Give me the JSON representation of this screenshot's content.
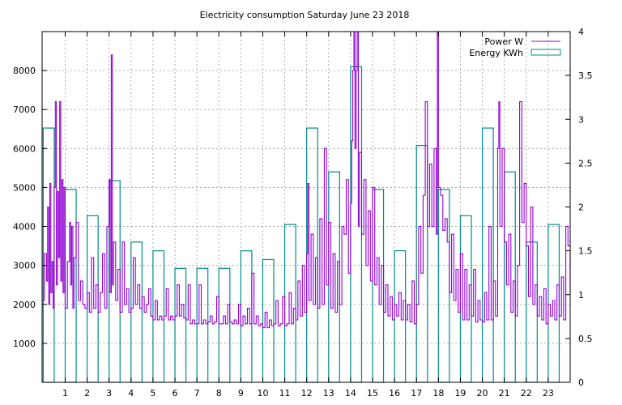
{
  "chart_data": {
    "type": "line",
    "title": "Electricity consumption Saturday June 23 2018",
    "xlabel": "",
    "ylabel": "",
    "y2label": "",
    "x_ticks": [
      "1",
      "2",
      "3",
      "4",
      "5",
      "6",
      "7",
      "8",
      "9",
      "10",
      "11",
      "12",
      "13",
      "14",
      "15",
      "16",
      "17",
      "18",
      "19",
      "20",
      "21",
      "22",
      "23"
    ],
    "x_range": [
      -0.05,
      24.0
    ],
    "y_ticks": [
      1000,
      2000,
      3000,
      4000,
      5000,
      6000,
      7000,
      8000
    ],
    "ylim": [
      0,
      9000
    ],
    "y2_ticks": [
      "0",
      "0.5",
      "1",
      "1.5",
      "2",
      "2.5",
      "3",
      "3.5",
      "4"
    ],
    "y2lim": [
      0,
      4
    ],
    "grid": true,
    "legend_position": "top-right",
    "series": [
      {
        "name": "Power W",
        "axis": "y",
        "color": "#9400d3",
        "style": "line",
        "points": [
          [
            -0.05,
            2100
          ],
          [
            0.05,
            3300
          ],
          [
            0.15,
            2600
          ],
          [
            0.2,
            4500
          ],
          [
            0.25,
            2000
          ],
          [
            0.3,
            5100
          ],
          [
            0.35,
            2300
          ],
          [
            0.4,
            3100
          ],
          [
            0.45,
            1900
          ],
          [
            0.5,
            5000
          ],
          [
            0.55,
            7200
          ],
          [
            0.6,
            2500
          ],
          [
            0.65,
            4900
          ],
          [
            0.7,
            3200
          ],
          [
            0.75,
            7200
          ],
          [
            0.8,
            2600
          ],
          [
            0.85,
            5200
          ],
          [
            0.9,
            2300
          ],
          [
            0.95,
            5000
          ],
          [
            1.0,
            1900
          ],
          [
            1.1,
            3100
          ],
          [
            1.2,
            4100
          ],
          [
            1.25,
            2500
          ],
          [
            1.3,
            4000
          ],
          [
            1.35,
            1900
          ],
          [
            1.4,
            3200
          ],
          [
            1.5,
            4100
          ],
          [
            1.6,
            2100
          ],
          [
            1.7,
            2600
          ],
          [
            1.8,
            2000
          ],
          [
            1.9,
            1900
          ],
          [
            2.0,
            2300
          ],
          [
            2.1,
            1800
          ],
          [
            2.2,
            3200
          ],
          [
            2.3,
            1900
          ],
          [
            2.4,
            2500
          ],
          [
            2.5,
            1800
          ],
          [
            2.6,
            2300
          ],
          [
            2.7,
            3300
          ],
          [
            2.8,
            1900
          ],
          [
            2.9,
            4000
          ],
          [
            3.0,
            5200
          ],
          [
            3.05,
            2300
          ],
          [
            3.1,
            8400
          ],
          [
            3.15,
            2500
          ],
          [
            3.2,
            3600
          ],
          [
            3.3,
            2100
          ],
          [
            3.4,
            2900
          ],
          [
            3.5,
            1800
          ],
          [
            3.6,
            3600
          ],
          [
            3.7,
            2000
          ],
          [
            3.8,
            2400
          ],
          [
            3.9,
            1800
          ],
          [
            4.0,
            1900
          ],
          [
            4.1,
            3200
          ],
          [
            4.2,
            2000
          ],
          [
            4.3,
            2500
          ],
          [
            4.4,
            1900
          ],
          [
            4.5,
            2200
          ],
          [
            4.6,
            1800
          ],
          [
            4.7,
            2000
          ],
          [
            4.8,
            2400
          ],
          [
            4.9,
            1700
          ],
          [
            5.0,
            1600
          ],
          [
            5.1,
            2100
          ],
          [
            5.2,
            1600
          ],
          [
            5.3,
            1700
          ],
          [
            5.4,
            1600
          ],
          [
            5.5,
            1700
          ],
          [
            5.6,
            2400
          ],
          [
            5.7,
            1600
          ],
          [
            5.8,
            1700
          ],
          [
            5.9,
            1600
          ],
          [
            6.0,
            1700
          ],
          [
            6.1,
            2500
          ],
          [
            6.2,
            1700
          ],
          [
            6.3,
            2000
          ],
          [
            6.4,
            1650
          ],
          [
            6.5,
            1600
          ],
          [
            6.6,
            2500
          ],
          [
            6.7,
            1500
          ],
          [
            6.8,
            1600
          ],
          [
            6.9,
            1500
          ],
          [
            7.0,
            1500
          ],
          [
            7.1,
            2500
          ],
          [
            7.2,
            1500
          ],
          [
            7.3,
            1600
          ],
          [
            7.4,
            1500
          ],
          [
            7.5,
            1550
          ],
          [
            7.6,
            1700
          ],
          [
            7.7,
            1500
          ],
          [
            7.8,
            1550
          ],
          [
            7.9,
            2200
          ],
          [
            8.0,
            1500
          ],
          [
            8.1,
            1500
          ],
          [
            8.2,
            1700
          ],
          [
            8.3,
            1500
          ],
          [
            8.4,
            2000
          ],
          [
            8.5,
            1550
          ],
          [
            8.6,
            1500
          ],
          [
            8.7,
            1600
          ],
          [
            8.8,
            1500
          ],
          [
            8.9,
            2000
          ],
          [
            9.0,
            1450
          ],
          [
            9.1,
            1700
          ],
          [
            9.2,
            1500
          ],
          [
            9.3,
            1900
          ],
          [
            9.4,
            1500
          ],
          [
            9.5,
            2800
          ],
          [
            9.6,
            1500
          ],
          [
            9.7,
            1700
          ],
          [
            9.8,
            1450
          ],
          [
            9.9,
            1500
          ],
          [
            10.0,
            1400
          ],
          [
            10.1,
            1800
          ],
          [
            10.2,
            1400
          ],
          [
            10.3,
            1600
          ],
          [
            10.4,
            1450
          ],
          [
            10.5,
            1500
          ],
          [
            10.6,
            2100
          ],
          [
            10.7,
            1450
          ],
          [
            10.8,
            1500
          ],
          [
            10.9,
            2200
          ],
          [
            11.0,
            1450
          ],
          [
            11.1,
            1500
          ],
          [
            11.2,
            2300
          ],
          [
            11.3,
            1500
          ],
          [
            11.4,
            1900
          ],
          [
            11.5,
            1600
          ],
          [
            11.6,
            2600
          ],
          [
            11.7,
            1700
          ],
          [
            11.8,
            3000
          ],
          [
            11.9,
            1800
          ],
          [
            12.0,
            3300
          ],
          [
            12.05,
            5100
          ],
          [
            12.1,
            2100
          ],
          [
            12.2,
            3800
          ],
          [
            12.3,
            2000
          ],
          [
            12.4,
            3200
          ],
          [
            12.5,
            1900
          ],
          [
            12.6,
            4200
          ],
          [
            12.7,
            2000
          ],
          [
            12.8,
            6000
          ],
          [
            12.9,
            2500
          ],
          [
            13.0,
            4100
          ],
          [
            13.1,
            1900
          ],
          [
            13.2,
            3300
          ],
          [
            13.3,
            1800
          ],
          [
            13.4,
            3100
          ],
          [
            13.5,
            2000
          ],
          [
            13.6,
            4000
          ],
          [
            13.7,
            3800
          ],
          [
            13.8,
            5200
          ],
          [
            13.9,
            2800
          ],
          [
            14.0,
            4600
          ],
          [
            14.05,
            6200
          ],
          [
            14.1,
            8000
          ],
          [
            14.15,
            9000
          ],
          [
            14.2,
            6000
          ],
          [
            14.25,
            8000
          ],
          [
            14.3,
            9000
          ],
          [
            14.35,
            4000
          ],
          [
            14.4,
            5900
          ],
          [
            14.5,
            3800
          ],
          [
            14.6,
            5200
          ],
          [
            14.7,
            3000
          ],
          [
            14.8,
            4400
          ],
          [
            14.9,
            2600
          ],
          [
            15.0,
            5000
          ],
          [
            15.1,
            2500
          ],
          [
            15.2,
            3200
          ],
          [
            15.3,
            2000
          ],
          [
            15.4,
            3000
          ],
          [
            15.5,
            1800
          ],
          [
            15.6,
            2500
          ],
          [
            15.7,
            1700
          ],
          [
            15.8,
            2200
          ],
          [
            15.9,
            1600
          ],
          [
            16.0,
            2000
          ],
          [
            16.1,
            1700
          ],
          [
            16.2,
            2300
          ],
          [
            16.3,
            1600
          ],
          [
            16.4,
            2100
          ],
          [
            16.5,
            1600
          ],
          [
            16.6,
            2000
          ],
          [
            16.7,
            1550
          ],
          [
            16.8,
            2600
          ],
          [
            16.9,
            1500
          ],
          [
            17.0,
            2000
          ],
          [
            17.1,
            4000
          ],
          [
            17.2,
            2800
          ],
          [
            17.3,
            4800
          ],
          [
            17.4,
            7200
          ],
          [
            17.5,
            4000
          ],
          [
            17.6,
            5600
          ],
          [
            17.7,
            4000
          ],
          [
            17.8,
            6000
          ],
          [
            17.9,
            3800
          ],
          [
            17.95,
            9000
          ],
          [
            18.0,
            5000
          ],
          [
            18.1,
            4800
          ],
          [
            18.2,
            3900
          ],
          [
            18.3,
            4200
          ],
          [
            18.4,
            3600
          ],
          [
            18.5,
            2300
          ],
          [
            18.6,
            3800
          ],
          [
            18.7,
            2100
          ],
          [
            18.8,
            2900
          ],
          [
            18.9,
            1800
          ],
          [
            19.0,
            3300
          ],
          [
            19.1,
            1600
          ],
          [
            19.2,
            2900
          ],
          [
            19.3,
            1600
          ],
          [
            19.4,
            2500
          ],
          [
            19.5,
            1700
          ],
          [
            19.6,
            2900
          ],
          [
            19.7,
            1550
          ],
          [
            19.8,
            2100
          ],
          [
            19.9,
            1600
          ],
          [
            20.0,
            1550
          ],
          [
            20.1,
            2300
          ],
          [
            20.2,
            1600
          ],
          [
            20.3,
            4000
          ],
          [
            20.4,
            1600
          ],
          [
            20.5,
            2600
          ],
          [
            20.6,
            1700
          ],
          [
            20.7,
            6000
          ],
          [
            20.75,
            7200
          ],
          [
            20.8,
            4000
          ],
          [
            20.9,
            6000
          ],
          [
            21.0,
            3600
          ],
          [
            21.1,
            2500
          ],
          [
            21.2,
            3800
          ],
          [
            21.3,
            1800
          ],
          [
            21.4,
            2600
          ],
          [
            21.5,
            1700
          ],
          [
            21.6,
            3000
          ],
          [
            21.7,
            7200
          ],
          [
            21.8,
            4100
          ],
          [
            21.9,
            5100
          ],
          [
            22.0,
            3500
          ],
          [
            22.1,
            2200
          ],
          [
            22.2,
            4500
          ],
          [
            22.3,
            2000
          ],
          [
            22.4,
            2500
          ],
          [
            22.5,
            1700
          ],
          [
            22.6,
            2200
          ],
          [
            22.7,
            1600
          ],
          [
            22.8,
            2400
          ],
          [
            22.9,
            1500
          ],
          [
            23.0,
            2000
          ],
          [
            23.1,
            1700
          ],
          [
            23.2,
            2100
          ],
          [
            23.3,
            1600
          ],
          [
            23.4,
            2500
          ],
          [
            23.5,
            1700
          ],
          [
            23.6,
            2700
          ],
          [
            23.7,
            1600
          ],
          [
            23.8,
            4000
          ],
          [
            23.9,
            3500
          ],
          [
            24.0,
            2300
          ]
        ]
      },
      {
        "name": "Energy KWh",
        "axis": "y2",
        "color": "#008b8b",
        "style": "boxes",
        "boxes": [
          [
            0.0,
            2.9
          ],
          [
            1.0,
            2.2
          ],
          [
            2.0,
            1.9
          ],
          [
            3.0,
            2.3
          ],
          [
            4.0,
            1.6
          ],
          [
            5.0,
            1.5
          ],
          [
            6.0,
            1.3
          ],
          [
            7.0,
            1.3
          ],
          [
            8.0,
            1.3
          ],
          [
            9.0,
            1.5
          ],
          [
            10.0,
            1.4
          ],
          [
            11.0,
            1.8
          ],
          [
            12.0,
            2.9
          ],
          [
            13.0,
            2.4
          ],
          [
            14.0,
            3.6
          ],
          [
            15.0,
            2.2
          ],
          [
            16.0,
            1.5
          ],
          [
            17.0,
            2.7
          ],
          [
            18.0,
            2.2
          ],
          [
            19.0,
            1.9
          ],
          [
            20.0,
            2.9
          ],
          [
            21.0,
            2.4
          ],
          [
            22.0,
            1.6
          ],
          [
            23.0,
            1.8
          ]
        ],
        "box_width": 0.5
      }
    ]
  }
}
